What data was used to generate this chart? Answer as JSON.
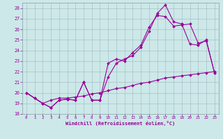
{
  "xlabel": "Windchill (Refroidissement éolien,°C)",
  "bg_color": "#cce8e8",
  "line_color": "#990099",
  "grid_color": "#aabbcc",
  "xlim": [
    -0.5,
    23.5
  ],
  "ylim": [
    18,
    28.5
  ],
  "yticks": [
    18,
    19,
    20,
    21,
    22,
    23,
    24,
    25,
    26,
    27,
    28
  ],
  "xticks": [
    0,
    1,
    2,
    3,
    4,
    5,
    6,
    7,
    8,
    9,
    10,
    11,
    12,
    13,
    14,
    15,
    16,
    17,
    18,
    19,
    20,
    21,
    22,
    23
  ],
  "line1_x": [
    0,
    1,
    2,
    3,
    4,
    5,
    6,
    7,
    8,
    9,
    10,
    11,
    12,
    13,
    14,
    15,
    16,
    17,
    18,
    19,
    20,
    21,
    22,
    23
  ],
  "line1_y": [
    20.0,
    19.5,
    19.0,
    18.6,
    19.3,
    19.4,
    19.3,
    21.0,
    19.3,
    19.3,
    21.5,
    22.8,
    23.2,
    23.5,
    24.3,
    25.8,
    27.5,
    28.3,
    26.7,
    26.5,
    24.6,
    24.5,
    25.0,
    21.9
  ],
  "line2_x": [
    0,
    1,
    2,
    3,
    4,
    5,
    6,
    7,
    8,
    9,
    10,
    11,
    12,
    13,
    14,
    15,
    16,
    17,
    18,
    19,
    20,
    21,
    22,
    23
  ],
  "line2_y": [
    20.0,
    19.5,
    19.0,
    18.6,
    19.3,
    19.4,
    19.3,
    21.0,
    19.3,
    19.3,
    22.8,
    23.2,
    23.0,
    23.8,
    24.5,
    26.2,
    27.3,
    27.2,
    26.3,
    26.4,
    26.5,
    24.7,
    24.9,
    21.9
  ],
  "line3_x": [
    0,
    1,
    2,
    3,
    4,
    5,
    6,
    7,
    8,
    9,
    10,
    11,
    12,
    13,
    14,
    15,
    16,
    17,
    18,
    19,
    20,
    21,
    22,
    23
  ],
  "line3_y": [
    20.0,
    19.5,
    19.0,
    19.3,
    19.5,
    19.5,
    19.6,
    19.7,
    19.9,
    20.0,
    20.2,
    20.4,
    20.5,
    20.7,
    20.9,
    21.0,
    21.2,
    21.4,
    21.5,
    21.6,
    21.7,
    21.8,
    21.9,
    22.0
  ]
}
